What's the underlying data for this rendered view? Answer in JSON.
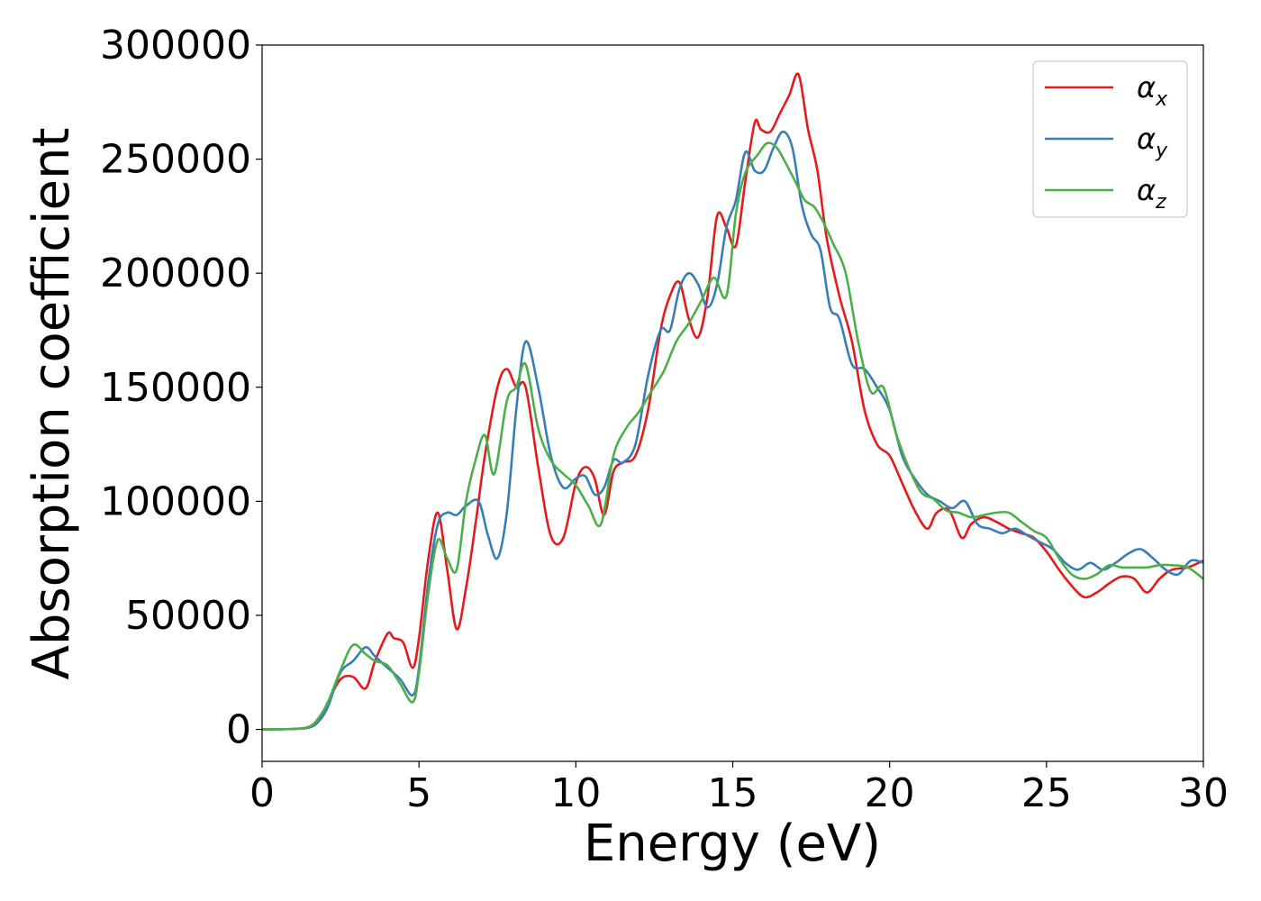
{
  "chart_data": {
    "type": "line",
    "xlabel": "Energy (eV)",
    "ylabel": "Absorption coefficient",
    "xlim": [
      0,
      30
    ],
    "ylim": [
      -14000,
      300000
    ],
    "xticks": [
      0,
      5,
      10,
      15,
      20,
      25,
      30
    ],
    "yticks": [
      0,
      50000,
      100000,
      150000,
      200000,
      250000,
      300000
    ],
    "grid": false,
    "legend_position": "top-right",
    "series": [
      {
        "name": "α",
        "subscript": "x",
        "color": "#e41a1c",
        "x": [
          0,
          1,
          1.5,
          1.8,
          2.1,
          2.5,
          2.9,
          3.3,
          3.6,
          4.0,
          4.2,
          4.5,
          4.8,
          5.0,
          5.3,
          5.6,
          5.9,
          6.2,
          6.5,
          6.8,
          7.1,
          7.5,
          7.8,
          8.1,
          8.4,
          8.8,
          9.2,
          9.6,
          10.0,
          10.3,
          10.6,
          10.9,
          11.2,
          11.5,
          11.9,
          12.3,
          12.7,
          13.0,
          13.3,
          13.6,
          13.9,
          14.2,
          14.5,
          14.8,
          15.1,
          15.4,
          15.7,
          15.9,
          16.2,
          16.5,
          16.8,
          17.1,
          17.4,
          17.7,
          18.0,
          18.4,
          18.8,
          19.2,
          19.6,
          20.0,
          20.4,
          20.8,
          21.2,
          21.5,
          21.9,
          22.3,
          22.6,
          23.0,
          23.4,
          23.8,
          24.2,
          24.6,
          25.0,
          25.4,
          25.8,
          26.2,
          26.6,
          27.0,
          27.4,
          27.8,
          28.2,
          28.6,
          29.0,
          29.5,
          30.0
        ],
        "y": [
          0,
          200,
          1000,
          4000,
          12000,
          22000,
          23000,
          18000,
          30000,
          42000,
          40000,
          38000,
          27000,
          40000,
          75000,
          95000,
          70000,
          44000,
          62000,
          90000,
          120000,
          150000,
          158000,
          150000,
          150000,
          115000,
          85000,
          84000,
          108000,
          115000,
          110000,
          94000,
          113000,
          117000,
          120000,
          140000,
          175000,
          190000,
          196000,
          180000,
          172000,
          190000,
          225000,
          220000,
          212000,
          240000,
          266000,
          263000,
          262000,
          270000,
          278000,
          287000,
          263000,
          245000,
          215000,
          190000,
          170000,
          140000,
          125000,
          120000,
          108000,
          96000,
          88000,
          95000,
          96000,
          84000,
          90000,
          93000,
          91000,
          88000,
          86000,
          84000,
          78000,
          70000,
          63000,
          58000,
          60000,
          64000,
          67000,
          66000,
          60000,
          66000,
          70000,
          71000,
          74000
        ]
      },
      {
        "name": "α",
        "subscript": "y",
        "color": "#377eb8",
        "x": [
          0,
          1,
          1.5,
          1.8,
          2.1,
          2.5,
          2.9,
          3.3,
          3.6,
          4.0,
          4.4,
          4.8,
          5.0,
          5.3,
          5.6,
          5.9,
          6.2,
          6.5,
          6.9,
          7.2,
          7.5,
          7.8,
          8.1,
          8.4,
          8.8,
          9.2,
          9.6,
          10.0,
          10.3,
          10.6,
          10.9,
          11.2,
          11.5,
          11.9,
          12.3,
          12.7,
          13.0,
          13.3,
          13.6,
          13.9,
          14.2,
          14.5,
          14.8,
          15.1,
          15.4,
          15.7,
          16.0,
          16.3,
          16.6,
          16.9,
          17.2,
          17.5,
          17.8,
          18.1,
          18.4,
          18.8,
          19.2,
          19.6,
          20.0,
          20.4,
          20.8,
          21.2,
          21.6,
          22.0,
          22.4,
          22.8,
          23.2,
          23.6,
          24.0,
          24.4,
          24.8,
          25.2,
          25.6,
          26.0,
          26.4,
          26.8,
          27.2,
          27.6,
          28.0,
          28.4,
          28.8,
          29.2,
          29.6,
          30.0
        ],
        "y": [
          0,
          200,
          800,
          3500,
          10000,
          25000,
          30000,
          36000,
          32000,
          27000,
          22000,
          15000,
          27000,
          65000,
          90000,
          95000,
          94000,
          98000,
          100000,
          85000,
          75000,
          95000,
          140000,
          170000,
          150000,
          120000,
          106000,
          110000,
          111000,
          103000,
          106000,
          118000,
          117000,
          125000,
          155000,
          175000,
          175000,
          193000,
          200000,
          195000,
          185000,
          195000,
          220000,
          232000,
          253000,
          245000,
          245000,
          255000,
          262000,
          255000,
          230000,
          217000,
          210000,
          185000,
          180000,
          160000,
          158000,
          150000,
          140000,
          120000,
          110000,
          103000,
          100000,
          97000,
          100000,
          90000,
          88000,
          86000,
          88000,
          85000,
          82000,
          79000,
          73000,
          70000,
          73000,
          70000,
          73000,
          77000,
          79000,
          75000,
          70000,
          68000,
          74000,
          73000
        ]
      },
      {
        "name": "α",
        "subscript": "z",
        "color": "#4daf4a",
        "x": [
          0,
          1,
          1.5,
          1.8,
          2.1,
          2.5,
          2.9,
          3.3,
          3.6,
          4.0,
          4.4,
          4.8,
          5.0,
          5.3,
          5.6,
          5.9,
          6.2,
          6.5,
          6.8,
          7.1,
          7.4,
          7.8,
          8.1,
          8.4,
          8.8,
          9.2,
          9.6,
          10.0,
          10.4,
          10.8,
          11.2,
          11.6,
          12.0,
          12.4,
          12.8,
          13.2,
          13.6,
          14.0,
          14.4,
          14.8,
          15.1,
          15.4,
          15.8,
          16.1,
          16.4,
          16.7,
          17.0,
          17.3,
          17.6,
          17.9,
          18.2,
          18.6,
          19.0,
          19.4,
          19.8,
          20.2,
          20.6,
          21.0,
          21.4,
          21.8,
          22.2,
          22.6,
          23.0,
          23.4,
          23.8,
          24.2,
          24.6,
          25.0,
          25.4,
          25.8,
          26.2,
          26.6,
          27.0,
          27.4,
          27.8,
          28.2,
          28.6,
          29.0,
          29.5,
          30.0
        ],
        "y": [
          0,
          200,
          1200,
          5000,
          12000,
          26000,
          37000,
          33000,
          30000,
          28000,
          20000,
          12000,
          25000,
          60000,
          83000,
          75000,
          70000,
          100000,
          118000,
          129000,
          112000,
          144000,
          150000,
          160000,
          132000,
          118000,
          112000,
          107000,
          98000,
          90000,
          120000,
          132000,
          139000,
          148000,
          157000,
          170000,
          178000,
          188000,
          198000,
          190000,
          226000,
          244000,
          252000,
          257000,
          255000,
          248000,
          240000,
          232000,
          229000,
          222000,
          213000,
          200000,
          170000,
          148000,
          150000,
          130000,
          115000,
          104000,
          101000,
          96000,
          95000,
          93000,
          94000,
          95000,
          95000,
          91000,
          87000,
          84000,
          75000,
          68000,
          66000,
          68000,
          72000,
          71000,
          71000,
          71000,
          72000,
          72000,
          71000,
          66000
        ]
      }
    ]
  }
}
